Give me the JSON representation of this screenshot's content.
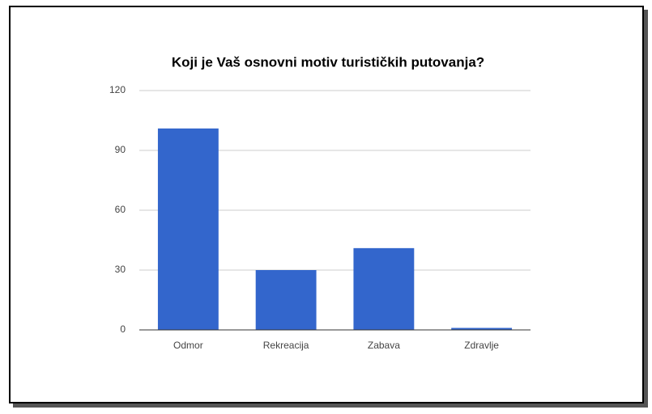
{
  "chart_data": {
    "type": "bar",
    "title": "Koji je Vaš osnovni motiv turističkih putovanja?",
    "categories": [
      "Odmor",
      "Rekreacija",
      "Zabava",
      "Zdravlje"
    ],
    "values": [
      101,
      30,
      41,
      1
    ],
    "color": "#3366cc",
    "ylim": [
      0,
      120
    ],
    "yticks": [
      0,
      30,
      60,
      90,
      120
    ],
    "grid": true
  }
}
